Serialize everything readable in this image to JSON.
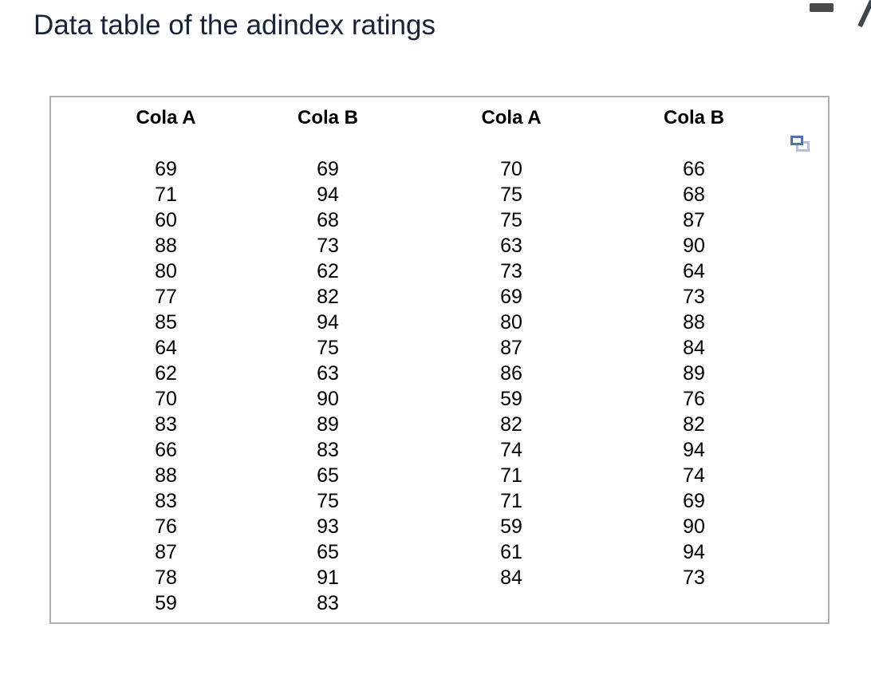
{
  "title": "Data table of the adindex ratings",
  "window": {
    "minimize_icon": "minimize-bar",
    "edit_icon": "pencil-diagonal"
  },
  "table": {
    "copy_icon": "copy-overlapping-rectangles",
    "headers": [
      "Cola A",
      "Cola B",
      "Cola A",
      "Cola B"
    ],
    "columns": [
      [
        69,
        71,
        60,
        88,
        80,
        77,
        85,
        64,
        62,
        70,
        83,
        66,
        88,
        83,
        76,
        87,
        78,
        59
      ],
      [
        69,
        94,
        68,
        73,
        62,
        82,
        94,
        75,
        63,
        90,
        89,
        83,
        65,
        75,
        93,
        65,
        91,
        83
      ],
      [
        70,
        75,
        75,
        63,
        73,
        69,
        80,
        87,
        86,
        59,
        82,
        74,
        71,
        71,
        59,
        61,
        84
      ],
      [
        66,
        68,
        87,
        90,
        64,
        73,
        88,
        84,
        89,
        76,
        82,
        94,
        74,
        69,
        90,
        94,
        73
      ]
    ]
  },
  "chart_data": {
    "type": "table",
    "title": "Data table of the adindex ratings",
    "series": [
      {
        "name": "Cola A",
        "values": [
          69,
          71,
          60,
          88,
          80,
          77,
          85,
          64,
          62,
          70,
          83,
          66,
          88,
          83,
          76,
          87,
          78,
          59,
          70,
          75,
          75,
          63,
          73,
          69,
          80,
          87,
          86,
          59,
          82,
          74,
          71,
          71,
          59,
          61,
          84
        ]
      },
      {
        "name": "Cola B",
        "values": [
          69,
          94,
          68,
          73,
          62,
          82,
          94,
          75,
          63,
          90,
          89,
          83,
          65,
          75,
          93,
          65,
          91,
          83,
          66,
          68,
          87,
          90,
          64,
          73,
          88,
          84,
          89,
          76,
          82,
          94,
          74,
          69,
          90,
          94,
          73
        ]
      }
    ]
  },
  "colors": {
    "title_text": "#182238",
    "table_border": "#b0b0b0",
    "copy_front": "#5272b0",
    "copy_back": "#b6c0de",
    "minimize_bar": "#4a4a4a",
    "pencil": "#3d464d"
  }
}
